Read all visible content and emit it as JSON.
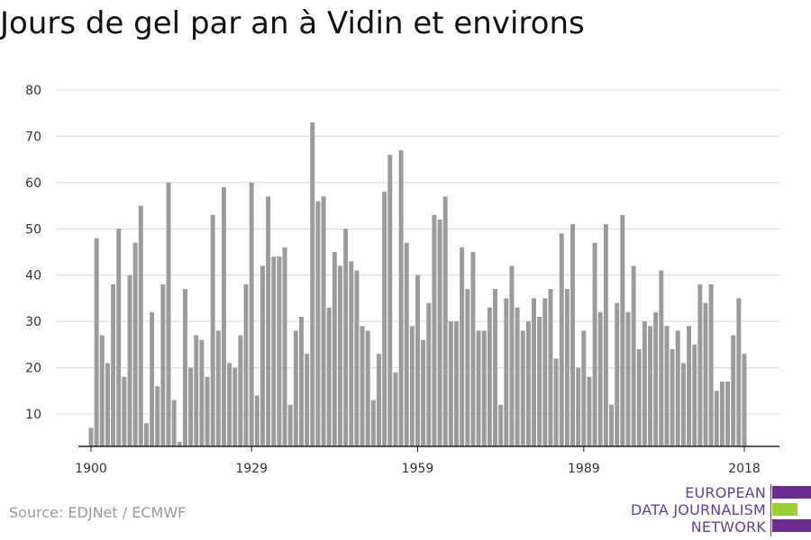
{
  "title": "Jours de gel par an à Vidin et environs",
  "source": "Source: EDJNet / ECMWF",
  "logo": {
    "lines": [
      "EUROPEAN",
      "DATA JOURNALISM",
      "NETWORK"
    ],
    "colors": {
      "purple": "#6a2c91",
      "green": "#9ccf32"
    }
  },
  "chart_data": {
    "type": "bar",
    "title": "Jours de gel par an à Vidin et environs",
    "xlabel": "",
    "ylabel": "",
    "ylim": [
      3,
      80
    ],
    "yticks": [
      10,
      20,
      30,
      40,
      50,
      60,
      70,
      80
    ],
    "xticks": [
      1900,
      1929,
      1959,
      1989,
      2018
    ],
    "grid": true,
    "bar_color": "#9b9b9b",
    "x": [
      1900,
      1901,
      1902,
      1903,
      1904,
      1905,
      1906,
      1907,
      1908,
      1909,
      1910,
      1911,
      1912,
      1913,
      1914,
      1915,
      1916,
      1917,
      1918,
      1919,
      1920,
      1921,
      1922,
      1923,
      1924,
      1925,
      1926,
      1927,
      1928,
      1929,
      1930,
      1931,
      1932,
      1933,
      1934,
      1935,
      1936,
      1937,
      1938,
      1939,
      1940,
      1941,
      1942,
      1943,
      1944,
      1945,
      1946,
      1947,
      1948,
      1949,
      1950,
      1951,
      1952,
      1953,
      1954,
      1955,
      1956,
      1957,
      1958,
      1959,
      1960,
      1961,
      1962,
      1963,
      1964,
      1965,
      1966,
      1967,
      1968,
      1969,
      1970,
      1971,
      1972,
      1973,
      1974,
      1975,
      1976,
      1977,
      1978,
      1979,
      1980,
      1981,
      1982,
      1983,
      1984,
      1985,
      1986,
      1987,
      1988,
      1989,
      1990,
      1991,
      1992,
      1993,
      1994,
      1995,
      1996,
      1997,
      1998,
      1999,
      2000,
      2001,
      2002,
      2003,
      2004,
      2005,
      2006,
      2007,
      2008,
      2009,
      2010,
      2011,
      2012,
      2013,
      2014,
      2015,
      2016,
      2017,
      2018
    ],
    "values": [
      7,
      48,
      27,
      21,
      38,
      50,
      18,
      40,
      47,
      55,
      8,
      32,
      16,
      38,
      60,
      13,
      4,
      37,
      20,
      27,
      26,
      18,
      53,
      28,
      59,
      21,
      20,
      27,
      38,
      60,
      14,
      42,
      57,
      44,
      44,
      46,
      12,
      28,
      31,
      23,
      73,
      56,
      57,
      33,
      45,
      42,
      50,
      43,
      41,
      29,
      28,
      13,
      23,
      58,
      66,
      19,
      67,
      47,
      29,
      40,
      26,
      34,
      53,
      52,
      57,
      30,
      30,
      46,
      37,
      45,
      28,
      28,
      33,
      37,
      12,
      35,
      42,
      33,
      28,
      30,
      35,
      31,
      35,
      37,
      22,
      49,
      37,
      51,
      20,
      28,
      18,
      47,
      32,
      51,
      12,
      34,
      53,
      32,
      42,
      24,
      30,
      29,
      32,
      41,
      29,
      24,
      28,
      21,
      29,
      25,
      38,
      34,
      38,
      15,
      17,
      17,
      27,
      35,
      23
    ]
  }
}
